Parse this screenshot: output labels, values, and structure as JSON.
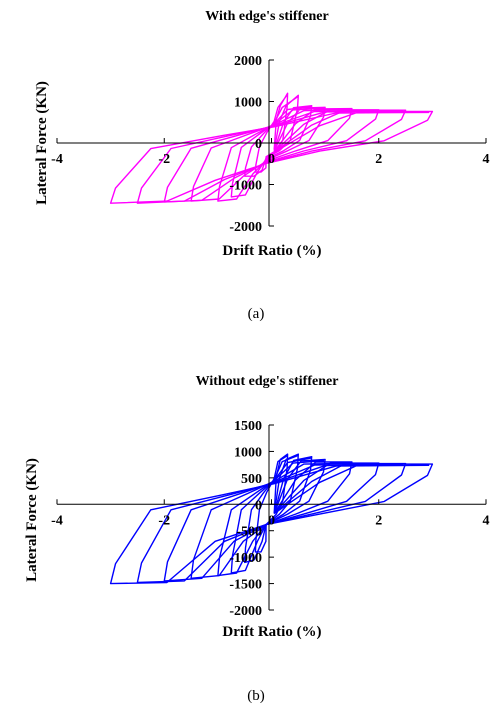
{
  "captions": [
    "(a)",
    "(b)"
  ],
  "chart_data": [
    {
      "type": "line",
      "title": "With edge's stiffener",
      "xlabel": "Drift Ratio (%)",
      "ylabel": "Lateral Force (KN)",
      "xlim": [
        -4,
        4
      ],
      "ylim": [
        -2000,
        2000
      ],
      "xticks": [
        -4,
        -2,
        0,
        2,
        4
      ],
      "yticks": [
        -2000,
        -1000,
        0,
        1000,
        2000
      ],
      "xtick_labels": [
        "-4",
        "-2",
        "0",
        "2",
        "4"
      ],
      "ytick_labels": [
        "-2000",
        "-1000",
        "0",
        "1000",
        "2000"
      ],
      "grid": false,
      "legend": "none",
      "series": [
        {
          "color": "#ff00ff",
          "cycles": [
            {
              "amp": 0.3,
              "peak_pos": 1200,
              "peak_neg": -700,
              "yield_pos": 900,
              "yield_neg": -700,
              "bend_pos": 700,
              "bend_neg": -600
            },
            {
              "amp": 0.5,
              "peak_pos": 1150,
              "peak_neg": -800,
              "yield_pos": 900,
              "yield_neg": -800,
              "bend_pos": 650,
              "bend_neg": -650
            },
            {
              "amp": 0.75,
              "peak_pos": 900,
              "peak_neg": -1300,
              "yield_pos": 850,
              "yield_neg": -1250,
              "bend_pos": 620,
              "bend_neg": -700
            },
            {
              "amp": 1.0,
              "peak_pos": 860,
              "peak_neg": -1400,
              "yield_pos": 840,
              "yield_neg": -1350,
              "bend_pos": 600,
              "bend_neg": -750
            },
            {
              "amp": 1.5,
              "peak_pos": 830,
              "peak_neg": -1400,
              "yield_pos": 820,
              "yield_neg": -1350,
              "bend_pos": 580,
              "bend_neg": -800
            },
            {
              "amp": 2.0,
              "peak_pos": 800,
              "peak_neg": -1420,
              "yield_pos": 800,
              "yield_neg": -1380,
              "bend_pos": 560,
              "bend_neg": -850
            },
            {
              "amp": 2.5,
              "peak_pos": 790,
              "peak_neg": -1450,
              "yield_pos": 790,
              "yield_neg": -1400,
              "bend_pos": 540,
              "bend_neg": -880
            },
            {
              "amp": 3.0,
              "peak_pos": 760,
              "peak_neg": -1450,
              "yield_pos": 760,
              "yield_neg": -1400,
              "bend_pos": 520,
              "bend_neg": -900
            }
          ]
        }
      ]
    },
    {
      "type": "line",
      "title": "Without edge's stiffener",
      "xlabel": "Drift Ratio (%)",
      "ylabel": "Lateral Force (KN)",
      "xlim": [
        -4,
        4
      ],
      "ylim": [
        -2000,
        1500
      ],
      "xticks": [
        -4,
        -2,
        0,
        2,
        4
      ],
      "yticks": [
        -2000,
        -1500,
        -1000,
        -500,
        0,
        500,
        1000,
        1500
      ],
      "xtick_labels": [
        "-4",
        "-2",
        "0",
        "2",
        "4"
      ],
      "ytick_labels": [
        "-2000",
        "-1500",
        "-1000",
        "-500",
        "0",
        "500",
        "1000",
        "1500"
      ],
      "grid": false,
      "legend": "none",
      "series": [
        {
          "color": "#0000ff",
          "cycles": [
            {
              "amp": 0.3,
              "peak_pos": 950,
              "peak_neg": -900,
              "yield_pos": 850,
              "yield_neg": -900,
              "bend_pos": 650,
              "bend_neg": -700
            },
            {
              "amp": 0.5,
              "peak_pos": 950,
              "peak_neg": -1100,
              "yield_pos": 850,
              "yield_neg": -1050,
              "bend_pos": 620,
              "bend_neg": -700
            },
            {
              "amp": 0.75,
              "peak_pos": 900,
              "peak_neg": -1300,
              "yield_pos": 830,
              "yield_neg": -1250,
              "bend_pos": 600,
              "bend_neg": -700
            },
            {
              "amp": 1.0,
              "peak_pos": 850,
              "peak_neg": -1350,
              "yield_pos": 820,
              "yield_neg": -1300,
              "bend_pos": 600,
              "bend_neg": -700
            },
            {
              "amp": 1.5,
              "peak_pos": 800,
              "peak_neg": -1400,
              "yield_pos": 800,
              "yield_neg": -1350,
              "bend_pos": 580,
              "bend_neg": -700
            },
            {
              "amp": 2.0,
              "peak_pos": 780,
              "peak_neg": -1450,
              "yield_pos": 780,
              "yield_neg": -1400,
              "bend_pos": 560,
              "bend_neg": -700
            },
            {
              "amp": 2.5,
              "peak_pos": 770,
              "peak_neg": -1480,
              "yield_pos": 770,
              "yield_neg": -1450,
              "bend_pos": 540,
              "bend_neg": -700
            },
            {
              "amp": 3.0,
              "peak_pos": 760,
              "peak_neg": -1500,
              "yield_pos": 760,
              "yield_neg": -1480,
              "bend_pos": 520,
              "bend_neg": -700
            }
          ]
        }
      ]
    }
  ]
}
